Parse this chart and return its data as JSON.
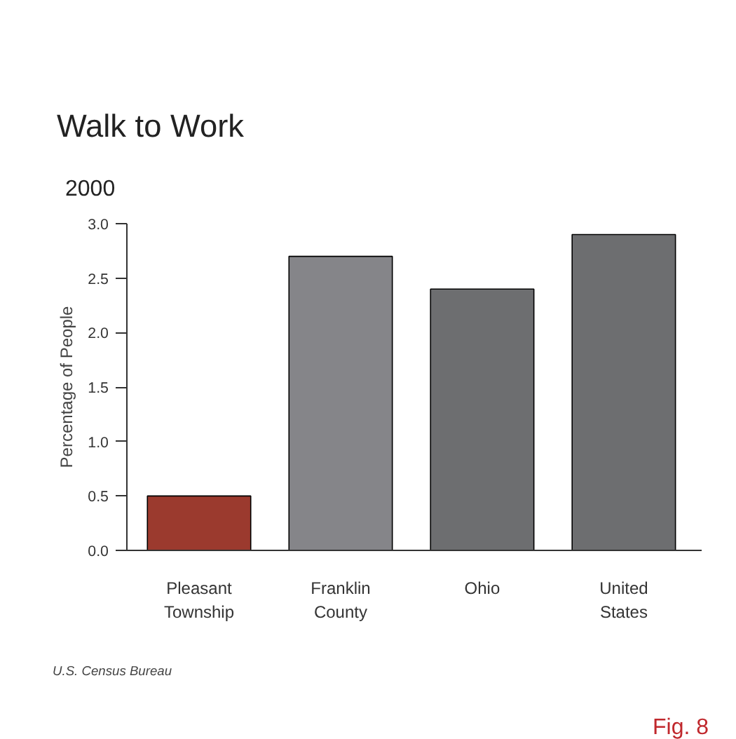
{
  "chart_data": {
    "type": "bar",
    "title": "Walk to Work",
    "subtitle": "2000",
    "ylabel": "Percentage of People",
    "categories": [
      "Pleasant Township",
      "Franklin County",
      "Ohio",
      "United States"
    ],
    "values": [
      0.5,
      2.7,
      2.4,
      2.9
    ],
    "colors": [
      "#9b3a2e",
      "#858589",
      "#6d6e70",
      "#6d6e70"
    ],
    "ylim": [
      0,
      3.0
    ],
    "yticks": [
      {
        "value": 0,
        "label": "0.0"
      },
      {
        "value": 0.5,
        "label": "0.5"
      },
      {
        "value": 1,
        "label": "1.0"
      },
      {
        "value": 1.5,
        "label": "1.5"
      },
      {
        "value": 2,
        "label": "2.0"
      },
      {
        "value": 2.5,
        "label": "2.5"
      },
      {
        "value": 3,
        "label": "3.0"
      }
    ],
    "grid": false,
    "annotations": [
      "U.S. Census Bureau",
      "Fig. 8"
    ]
  }
}
